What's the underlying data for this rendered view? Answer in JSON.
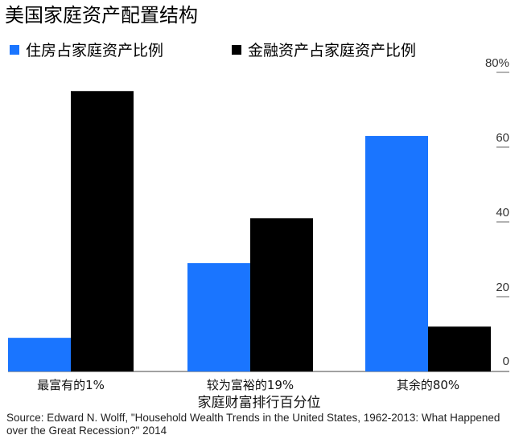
{
  "chart_data": {
    "type": "bar",
    "title": "美国家庭资产配置结构",
    "categories": [
      "最富有的1%",
      "较为富裕的19%",
      "其余的80%"
    ],
    "series": [
      {
        "name": "住房占家庭资产比例",
        "color": "#1a75ff",
        "values": [
          9,
          29,
          63
        ]
      },
      {
        "name": "金融资产占家庭资产比例",
        "color": "#000000",
        "values": [
          75,
          41,
          12
        ]
      }
    ],
    "xlabel": "家庭财富排行百分位",
    "ylabel": "",
    "ylim": [
      0,
      80
    ],
    "yticks": [
      0,
      20,
      40,
      60,
      80
    ],
    "ytick_labels": [
      "0",
      "20",
      "40",
      "60",
      "80%"
    ],
    "y_axis_side": "right",
    "grid": false,
    "legend_position": "top"
  },
  "source": "Source: Edward N. Wolff, \"Household Wealth Trends in the United States, 1962-2013: What Happened over the Great Recession?\" 2014"
}
